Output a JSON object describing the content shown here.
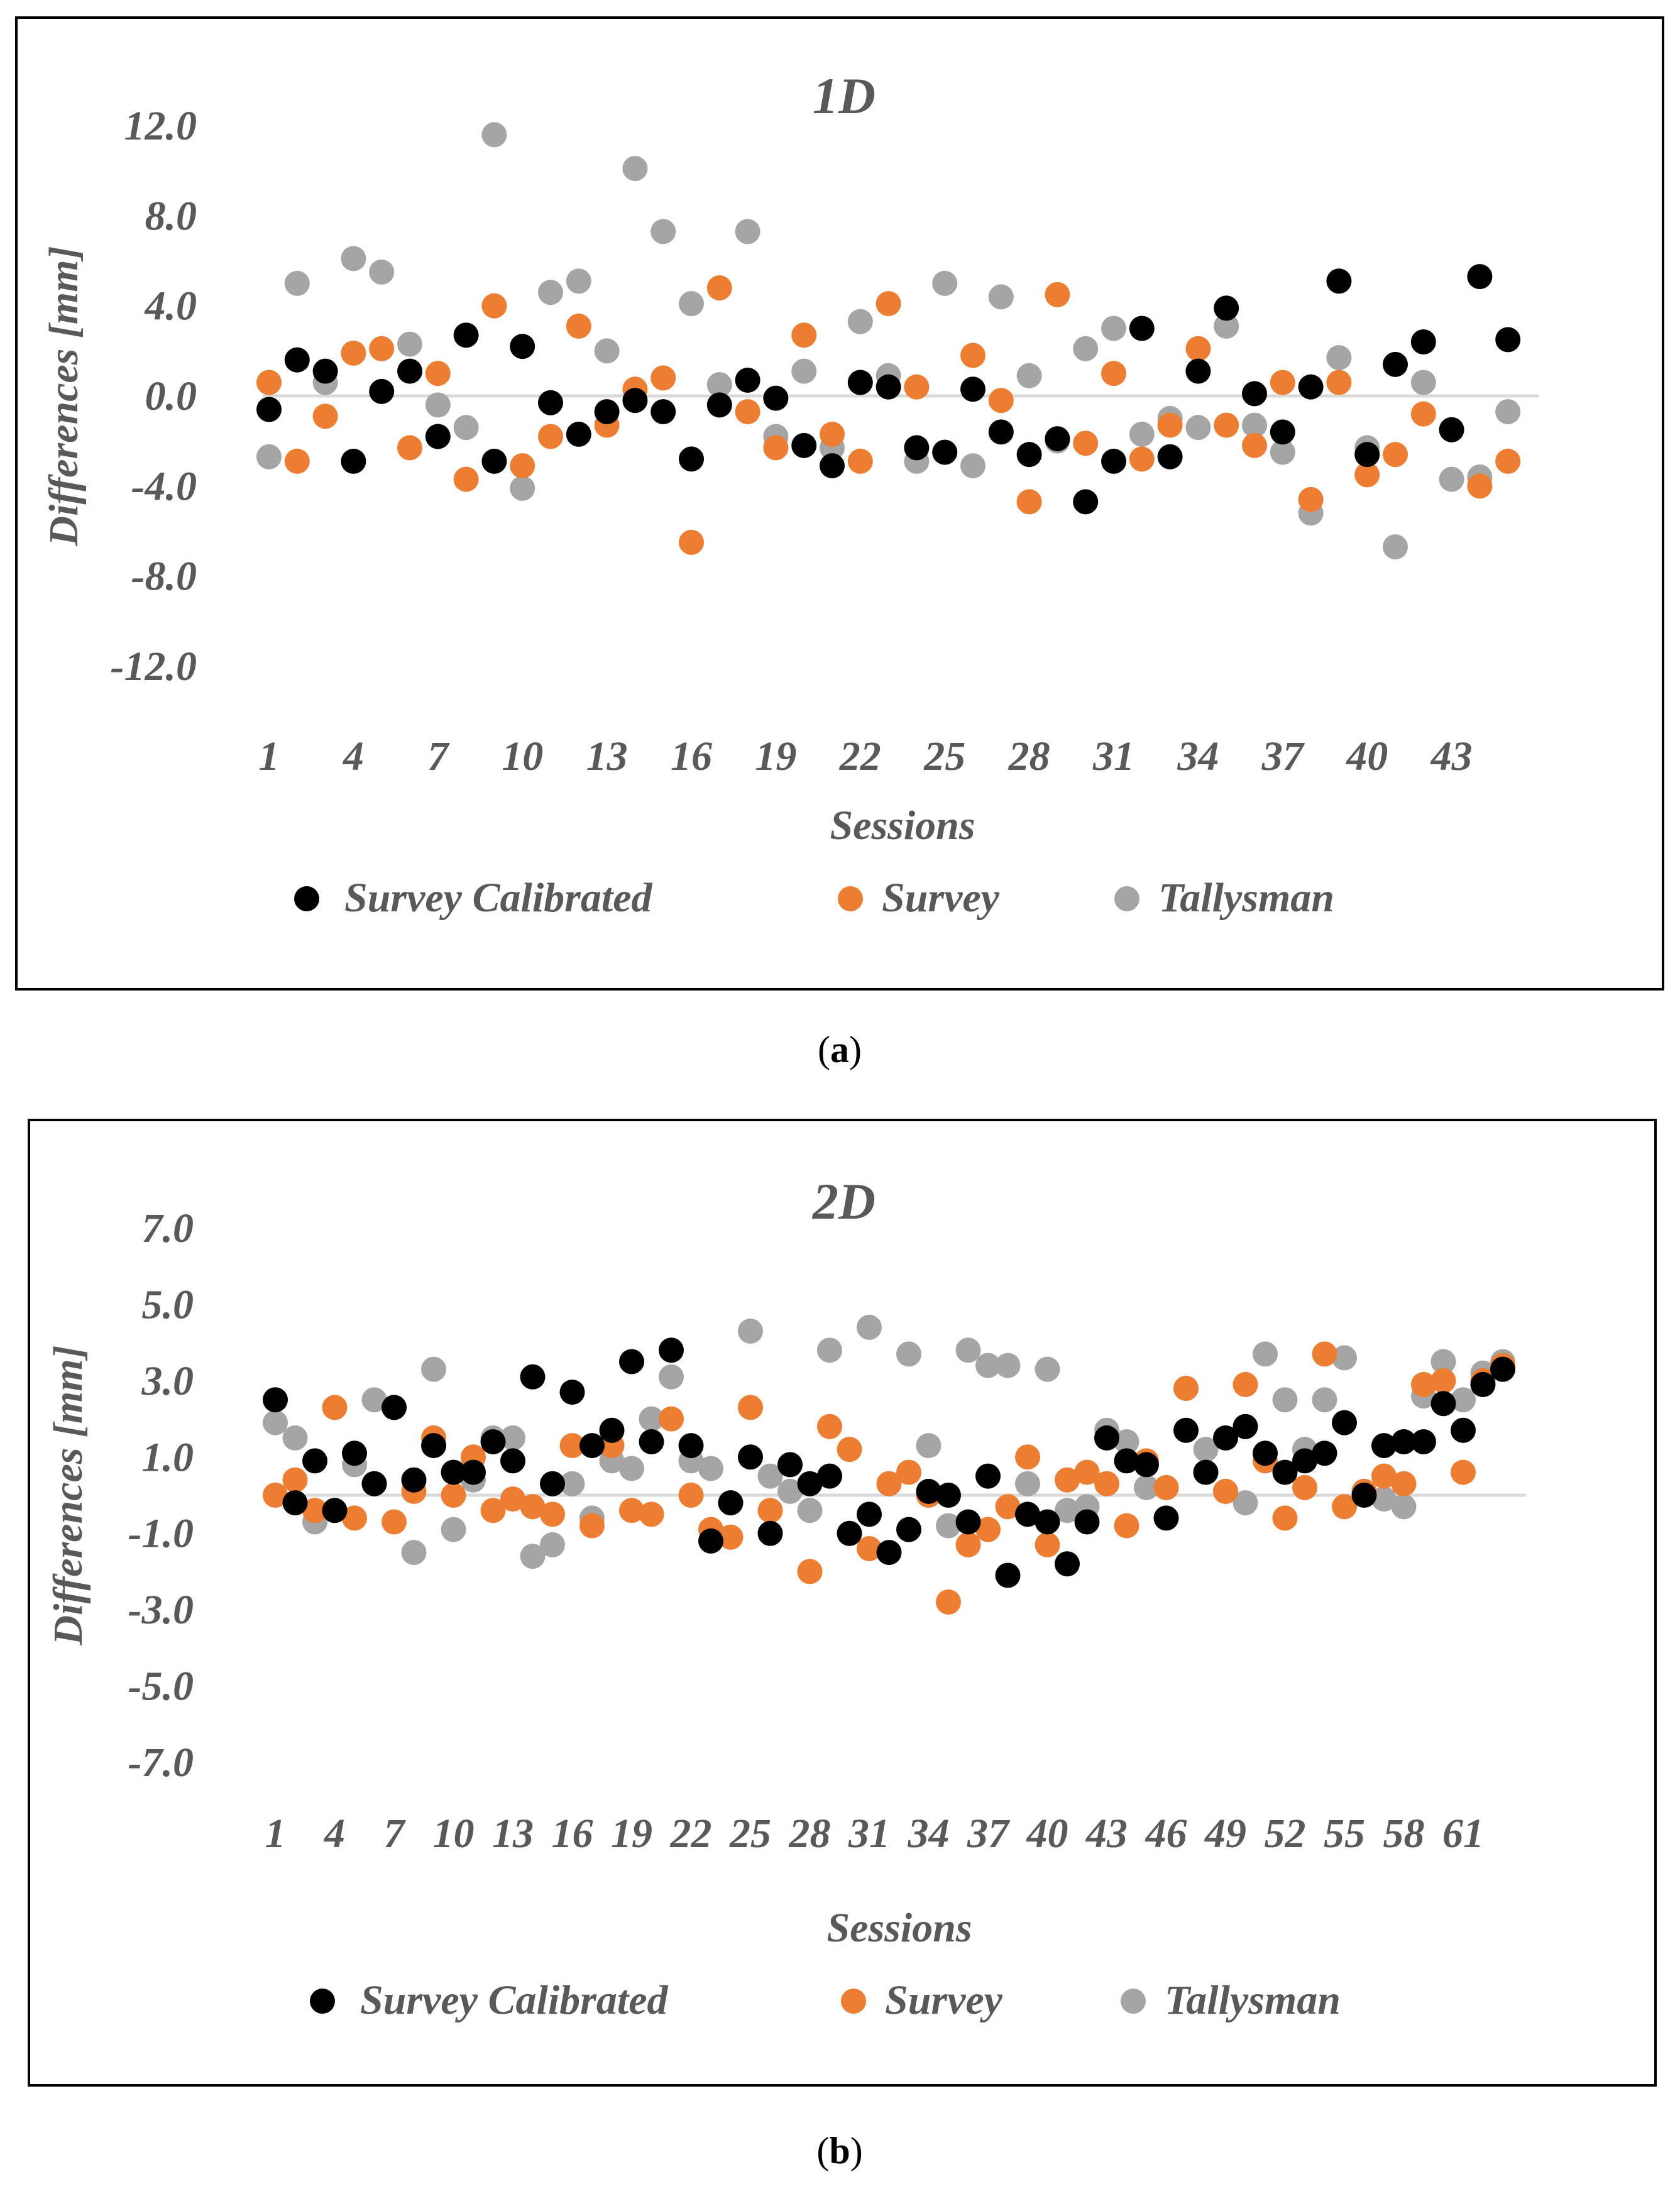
{
  "charts": [
    {
      "label": "a",
      "chart_data": {
        "type": "scatter",
        "title": "1D",
        "xlabel": "Sessions",
        "ylabel": "Differences [mm]",
        "ylim": [
          -12,
          12
        ],
        "yticks": [
          "12.0",
          "8.0",
          "4.0",
          "0.0",
          "-4.0",
          "-8.0",
          "-12.0"
        ],
        "xticks": [
          "1",
          "4",
          "7",
          "10",
          "13",
          "16",
          "19",
          "22",
          "25",
          "28",
          "31",
          "34",
          "37",
          "40",
          "43"
        ],
        "n": 45,
        "legend": [
          "Survey Calibrated",
          "Survey",
          "Tallysman"
        ],
        "series": [
          {
            "name": "Survey Calibrated",
            "color": "#000000",
            "values": [
              -0.6,
              1.6,
              1.1,
              -2.9,
              0.2,
              1.1,
              -1.8,
              2.7,
              -2.9,
              2.2,
              -0.3,
              -1.7,
              -0.7,
              -0.2,
              -0.7,
              -2.8,
              -0.4,
              0.7,
              -0.1,
              -2.2,
              -3.1,
              0.6,
              0.4,
              -2.3,
              -2.5,
              0.3,
              -1.6,
              -2.6,
              -1.9,
              -4.7,
              -2.9,
              3.0,
              -2.7,
              1.1,
              3.9,
              0.1,
              -1.6,
              0.4,
              5.1,
              -2.6,
              1.4,
              2.4,
              -1.5,
              5.3,
              2.5
            ]
          },
          {
            "name": "Survey",
            "color": "#ed7d31",
            "values": [
              0.6,
              -2.9,
              -0.9,
              1.9,
              2.1,
              -2.3,
              1.0,
              -3.7,
              4.0,
              -3.1,
              -1.8,
              3.1,
              -1.3,
              0.3,
              0.8,
              -6.5,
              4.8,
              -0.7,
              -2.3,
              2.7,
              -1.7,
              -2.9,
              4.1,
              0.4,
              -2.5,
              1.8,
              -0.2,
              -4.7,
              4.5,
              -2.1,
              1.0,
              -2.8,
              -1.3,
              2.1,
              -1.3,
              -2.2,
              0.6,
              -4.6,
              0.6,
              -3.5,
              -2.6,
              -0.8,
              -1.5,
              -4.0,
              -2.9
            ]
          },
          {
            "name": "Tallysman",
            "color": "#a5a5a5",
            "values": [
              -2.7,
              5.0,
              0.6,
              6.1,
              5.5,
              2.3,
              -0.4,
              -1.4,
              11.6,
              -4.1,
              4.6,
              5.1,
              2.0,
              10.1,
              7.3,
              4.1,
              0.5,
              7.3,
              -1.8,
              1.1,
              -2.3,
              3.3,
              0.9,
              -2.9,
              5.0,
              -3.1,
              4.4,
              0.9,
              -2.0,
              2.1,
              3.0,
              -1.7,
              -1.0,
              -1.4,
              3.1,
              -1.3,
              -2.5,
              -5.2,
              1.7,
              -2.3,
              -6.7,
              0.6,
              -3.7,
              -3.6,
              -0.7
            ]
          }
        ]
      }
    },
    {
      "label": "b",
      "chart_data": {
        "type": "scatter",
        "title": "2D",
        "xlabel": "Sessions",
        "ylabel": "Differences [mm]",
        "ylim": [
          -7,
          7
        ],
        "yticks": [
          "7.0",
          "5.0",
          "3.0",
          "1.0",
          "-1.0",
          "-3.0",
          "-5.0",
          "-7.0"
        ],
        "xticks": [
          "1",
          "4",
          "7",
          "10",
          "13",
          "16",
          "19",
          "22",
          "25",
          "28",
          "31",
          "34",
          "37",
          "40",
          "43",
          "46",
          "49",
          "52",
          "55",
          "58",
          "61"
        ],
        "n": 63,
        "legend": [
          "Survey Calibrated",
          "Survey",
          "Tallysman"
        ],
        "series": [
          {
            "name": "Survey Calibrated",
            "color": "#000000",
            "values": [
              2.5,
              -0.2,
              0.9,
              -0.4,
              1.1,
              0.3,
              2.3,
              0.4,
              1.3,
              0.6,
              0.6,
              1.4,
              0.9,
              3.1,
              0.3,
              2.7,
              1.3,
              1.7,
              3.5,
              1.4,
              3.8,
              1.3,
              -1.2,
              -0.2,
              1.0,
              -1.0,
              0.8,
              0.3,
              0.5,
              -1.0,
              -0.5,
              -1.5,
              -0.9,
              0.1,
              0.0,
              -0.7,
              0.5,
              -2.1,
              -0.5,
              -0.7,
              -1.8,
              -0.7,
              1.5,
              0.9,
              0.8,
              -0.6,
              1.7,
              0.6,
              1.5,
              1.8,
              1.1,
              0.6,
              0.9,
              1.1,
              1.9,
              0.0,
              1.3,
              1.4,
              1.4,
              2.4,
              1.7,
              2.9,
              3.3
            ]
          },
          {
            "name": "Survey",
            "color": "#ed7d31",
            "values": [
              0.0,
              0.4,
              -0.4,
              2.3,
              -0.6,
              0.3,
              -0.7,
              0.1,
              1.5,
              0.0,
              1.0,
              -0.4,
              -0.1,
              -0.3,
              -0.5,
              1.3,
              -0.8,
              1.3,
              -0.4,
              -0.5,
              2.0,
              0.0,
              -0.9,
              -1.1,
              2.3,
              -0.4,
              0.8,
              -2.0,
              1.8,
              1.2,
              -1.4,
              0.3,
              0.6,
              0.0,
              -2.8,
              -1.3,
              -0.9,
              -0.3,
              1.0,
              -1.3,
              0.4,
              0.6,
              0.3,
              -0.8,
              0.9,
              0.2,
              2.8,
              0.6,
              0.1,
              2.9,
              0.9,
              -0.6,
              0.2,
              3.7,
              -0.3,
              0.1,
              0.5,
              0.3,
              2.9,
              3.0,
              0.6,
              3.0,
              3.4
            ]
          },
          {
            "name": "Tallysman",
            "color": "#a5a5a5",
            "values": [
              1.9,
              1.5,
              -0.7,
              -0.4,
              0.8,
              2.5,
              2.3,
              -1.5,
              3.3,
              -0.9,
              0.4,
              1.5,
              1.5,
              -1.6,
              -1.3,
              0.3,
              -0.6,
              0.9,
              0.7,
              2.0,
              3.1,
              0.9,
              0.7,
              -0.2,
              4.3,
              0.5,
              0.1,
              -0.4,
              3.8,
              -1.0,
              4.4,
              0.3,
              3.7,
              1.3,
              -0.8,
              3.8,
              3.4,
              3.4,
              0.3,
              3.3,
              -0.4,
              -0.3,
              1.7,
              1.4,
              0.2,
              0.2,
              2.8,
              1.2,
              0.1,
              -0.2,
              3.7,
              2.5,
              1.2,
              2.5,
              3.6,
              0.1,
              -0.1,
              -0.3,
              2.6,
              3.5,
              2.5,
              3.2,
              3.5
            ]
          }
        ]
      }
    }
  ]
}
